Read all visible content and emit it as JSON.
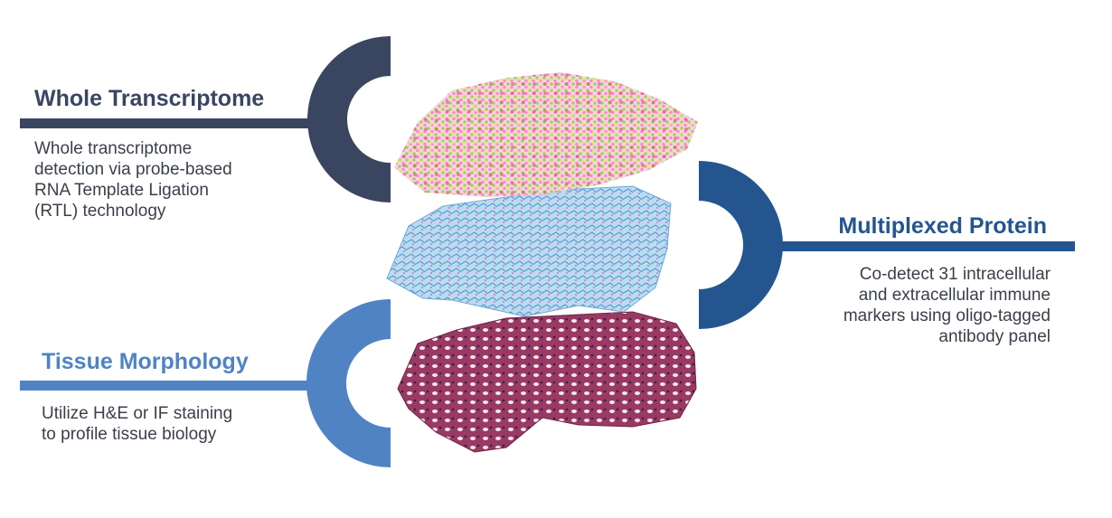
{
  "colors": {
    "whole_transcriptome": "#3a4660",
    "multiplexed_protein": "#24558e",
    "tissue_morphology": "#4f83c4"
  },
  "sections": {
    "whole_transcriptome": {
      "title": "Whole Transcriptome",
      "lines": [
        "Whole transcriptome",
        "detection via probe-based",
        "RNA Template Ligation",
        "(RTL) technology"
      ]
    },
    "multiplexed_protein": {
      "title": "Multiplexed Protein",
      "lines": [
        "Co-detect 31 intracellular",
        "and extracellular immune",
        "markers using oligo-tagged",
        "antibody panel"
      ]
    },
    "tissue_morphology": {
      "title": "Tissue Morphology",
      "lines": [
        "Utilize H&E or IF staining",
        "to profile tissue biology"
      ]
    }
  },
  "icons": {
    "layer_top": "spatial-gene-expression-spot-grid",
    "layer_middle": "immunofluorescence-tissue-section",
    "layer_bottom": "he-stained-tissue-section"
  }
}
